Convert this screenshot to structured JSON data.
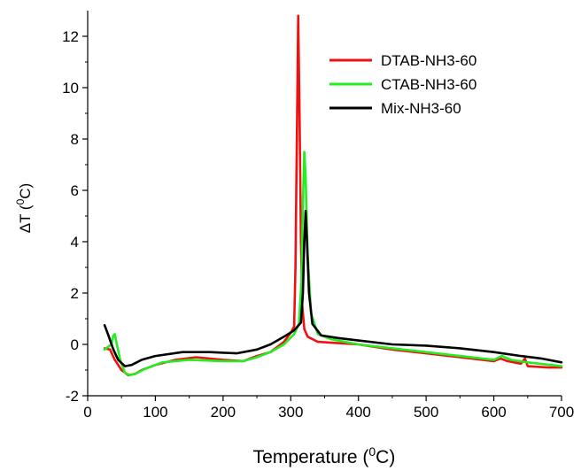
{
  "chart_data": {
    "type": "line",
    "xlabel_main": "Temperature (",
    "xlabel_sup": "0",
    "xlabel_end": "C)",
    "ylabel_main": "ΔT (",
    "ylabel_sup": "0",
    "ylabel_end": "C)",
    "xlim": [
      0,
      700
    ],
    "ylim": [
      -2,
      13
    ],
    "xticks": [
      0,
      100,
      200,
      300,
      400,
      500,
      600,
      700
    ],
    "yticks": [
      -2,
      0,
      2,
      4,
      6,
      8,
      10,
      12
    ],
    "grid": false,
    "legend_position": "top-right",
    "series": [
      {
        "name": "DTAB-NH3-60",
        "color": "#ee1111",
        "points": [
          [
            25,
            -0.15
          ],
          [
            33,
            -0.2
          ],
          [
            40,
            -0.6
          ],
          [
            50,
            -1.0
          ],
          [
            60,
            -1.2
          ],
          [
            70,
            -1.15
          ],
          [
            80,
            -1.0
          ],
          [
            100,
            -0.8
          ],
          [
            130,
            -0.6
          ],
          [
            160,
            -0.5
          ],
          [
            200,
            -0.6
          ],
          [
            230,
            -0.65
          ],
          [
            250,
            -0.45
          ],
          [
            270,
            -0.3
          ],
          [
            290,
            0.1
          ],
          [
            300,
            0.45
          ],
          [
            305,
            0.7
          ],
          [
            307,
            3.0
          ],
          [
            309,
            8.0
          ],
          [
            311,
            12.8
          ],
          [
            313,
            9.0
          ],
          [
            315,
            4.0
          ],
          [
            317,
            1.5
          ],
          [
            320,
            0.6
          ],
          [
            325,
            0.3
          ],
          [
            340,
            0.1
          ],
          [
            400,
            0.0
          ],
          [
            450,
            -0.2
          ],
          [
            500,
            -0.35
          ],
          [
            550,
            -0.5
          ],
          [
            600,
            -0.65
          ],
          [
            610,
            -0.55
          ],
          [
            620,
            -0.65
          ],
          [
            640,
            -0.75
          ],
          [
            646,
            -0.55
          ],
          [
            650,
            -0.85
          ],
          [
            680,
            -0.9
          ],
          [
            700,
            -0.9
          ]
        ]
      },
      {
        "name": "CTAB-NH3-60",
        "color": "#22ee22",
        "points": [
          [
            25,
            -0.2
          ],
          [
            30,
            -0.1
          ],
          [
            35,
            0.0
          ],
          [
            38,
            0.35
          ],
          [
            40,
            0.4
          ],
          [
            43,
            0.0
          ],
          [
            48,
            -0.6
          ],
          [
            55,
            -1.1
          ],
          [
            62,
            -1.2
          ],
          [
            70,
            -1.15
          ],
          [
            85,
            -0.95
          ],
          [
            110,
            -0.7
          ],
          [
            150,
            -0.6
          ],
          [
            200,
            -0.65
          ],
          [
            230,
            -0.65
          ],
          [
            250,
            -0.5
          ],
          [
            270,
            -0.3
          ],
          [
            290,
            0.0
          ],
          [
            305,
            0.4
          ],
          [
            312,
            0.8
          ],
          [
            316,
            2.5
          ],
          [
            318,
            5.5
          ],
          [
            320,
            7.5
          ],
          [
            322,
            6.5
          ],
          [
            325,
            3.5
          ],
          [
            330,
            1.2
          ],
          [
            340,
            0.4
          ],
          [
            360,
            0.2
          ],
          [
            400,
            0.0
          ],
          [
            450,
            -0.15
          ],
          [
            500,
            -0.3
          ],
          [
            550,
            -0.45
          ],
          [
            600,
            -0.6
          ],
          [
            612,
            -0.45
          ],
          [
            625,
            -0.6
          ],
          [
            650,
            -0.7
          ],
          [
            700,
            -0.85
          ]
        ]
      },
      {
        "name": "Mix-NH3-60",
        "color": "#000000",
        "points": [
          [
            25,
            0.75
          ],
          [
            30,
            0.4
          ],
          [
            38,
            -0.2
          ],
          [
            45,
            -0.6
          ],
          [
            55,
            -0.85
          ],
          [
            65,
            -0.8
          ],
          [
            80,
            -0.6
          ],
          [
            100,
            -0.45
          ],
          [
            140,
            -0.3
          ],
          [
            180,
            -0.3
          ],
          [
            220,
            -0.35
          ],
          [
            250,
            -0.2
          ],
          [
            270,
            0.0
          ],
          [
            290,
            0.3
          ],
          [
            305,
            0.55
          ],
          [
            315,
            0.85
          ],
          [
            318,
            2.0
          ],
          [
            320,
            4.0
          ],
          [
            322,
            5.2
          ],
          [
            324,
            4.0
          ],
          [
            327,
            2.0
          ],
          [
            332,
            0.8
          ],
          [
            345,
            0.35
          ],
          [
            370,
            0.25
          ],
          [
            400,
            0.15
          ],
          [
            450,
            0.0
          ],
          [
            500,
            -0.05
          ],
          [
            550,
            -0.15
          ],
          [
            600,
            -0.3
          ],
          [
            640,
            -0.45
          ],
          [
            670,
            -0.55
          ],
          [
            700,
            -0.7
          ]
        ]
      }
    ]
  }
}
